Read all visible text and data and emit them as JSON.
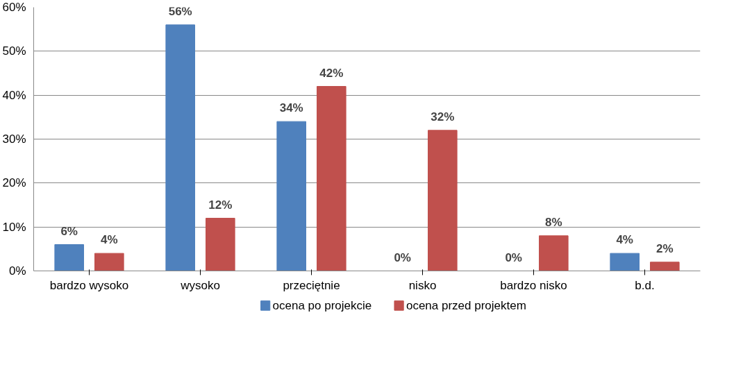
{
  "chart_data": {
    "type": "bar",
    "categories": [
      "bardzo wysoko",
      "wysoko",
      "przeciętnie",
      "nisko",
      "bardzo nisko",
      "b.d."
    ],
    "series": [
      {
        "name": "ocena po projekcie",
        "color": "#4f81bd",
        "values": [
          6,
          56,
          34,
          0,
          0,
          4
        ],
        "value_labels": [
          "6%",
          "56%",
          "34%",
          "0%",
          "0%",
          "4%"
        ]
      },
      {
        "name": "ocena przed projektem",
        "color": "#c0504d",
        "values": [
          4,
          12,
          42,
          32,
          8,
          2
        ],
        "value_labels": [
          "4%",
          "12%",
          "42%",
          "32%",
          "8%",
          "2%"
        ]
      }
    ],
    "ylim": [
      0,
      60
    ],
    "yticks": [
      {
        "value": 0,
        "label": "0%"
      },
      {
        "value": 10,
        "label": "10%"
      },
      {
        "value": 20,
        "label": "20%"
      },
      {
        "value": 30,
        "label": "30%"
      },
      {
        "value": 40,
        "label": "40%"
      },
      {
        "value": 50,
        "label": "50%"
      },
      {
        "value": 60,
        "label": "60%"
      }
    ],
    "grid": "y",
    "legend": "bottom"
  }
}
